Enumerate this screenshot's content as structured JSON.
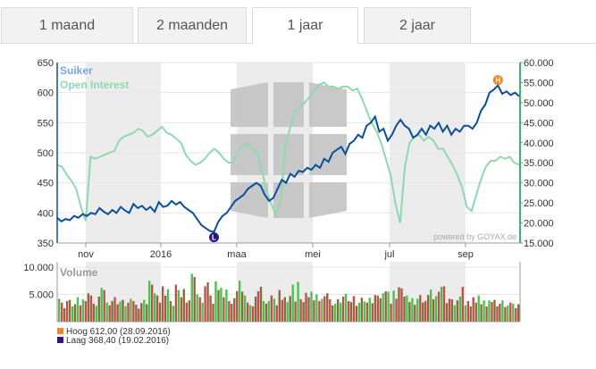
{
  "tabs": [
    {
      "label": "1 maand",
      "active": false
    },
    {
      "label": "2 maanden",
      "active": false
    },
    {
      "label": "1 jaar",
      "active": true
    },
    {
      "label": "2 jaar",
      "active": false
    }
  ],
  "legend": {
    "series1": "Suiker",
    "series2": "Open Interest",
    "volume": "Volume"
  },
  "watermark": "powered by GOYAX.de",
  "markers": {
    "high_letter": "H",
    "low_letter": "L"
  },
  "footer": {
    "high_text": "Hoog 612,00 (28.09.2016)",
    "low_text": "Laag 368,40 (19.02.2016)"
  },
  "colors": {
    "price": "#0a4f9a",
    "oi": "#8fd9ae",
    "oi_axis": "#3cb371",
    "high": "#e8882a",
    "low": "#2b1a7a",
    "vol_up": "#4fbf4f",
    "vol_down": "#c0504d",
    "vol_mix": "#8b6a3a",
    "band": "#ececec"
  },
  "chart_data": [
    {
      "type": "line",
      "x_ticks": [
        "nov",
        "2016",
        "maa",
        "mei",
        "jul",
        "sep"
      ],
      "y_left": {
        "ylim": [
          350,
          650
        ],
        "ticks": [
          "350",
          "400",
          "450",
          "500",
          "550",
          "600",
          "650"
        ]
      },
      "y_right": {
        "ylim": [
          15000,
          60000
        ],
        "ticks": [
          "15.000",
          "20.000",
          "25.000",
          "30.000",
          "35.000",
          "40.000",
          "45.000",
          "50.000",
          "55.000",
          "60.000"
        ]
      },
      "series": [
        {
          "name": "Suiker",
          "axis": "left",
          "values": [
            392,
            386,
            390,
            388,
            395,
            392,
            398,
            395,
            400,
            398,
            408,
            402,
            398,
            405,
            400,
            410,
            404,
            400,
            415,
            408,
            412,
            405,
            410,
            402,
            418,
            410,
            412,
            420,
            414,
            418,
            410,
            405,
            400,
            390,
            380,
            375,
            370,
            368.4,
            385,
            395,
            400,
            410,
            420,
            425,
            430,
            440,
            445,
            450,
            445,
            430,
            420,
            425,
            440,
            455,
            450,
            465,
            460,
            470,
            468,
            475,
            472,
            480,
            475,
            490,
            485,
            500,
            505,
            510,
            498,
            515,
            520,
            530,
            525,
            545,
            550,
            560,
            535,
            540,
            520,
            530,
            545,
            555,
            545,
            540,
            525,
            530,
            540,
            530,
            545,
            540,
            550,
            535,
            545,
            530,
            540,
            535,
            545,
            545,
            540,
            550,
            570,
            580,
            600,
            605,
            612,
            598,
            602,
            596,
            600,
            594
          ],
          "high": 612,
          "low": 368.4
        },
        {
          "name": "Open Interest",
          "axis": "right",
          "values": [
            34500,
            34000,
            32000,
            30500,
            28500,
            24000,
            20500,
            36500,
            36000,
            36500,
            37000,
            37500,
            38000,
            40500,
            41500,
            42000,
            42500,
            43500,
            43000,
            41500,
            42000,
            43000,
            44000,
            42500,
            42000,
            41000,
            40000,
            37000,
            35500,
            34500,
            35000,
            36000,
            37500,
            38500,
            37500,
            36000,
            35000,
            35200,
            38000,
            39500,
            40000,
            38500,
            37500,
            33000,
            28000,
            24500,
            22000,
            26000,
            40000,
            44000,
            48000,
            49000,
            50000,
            51500,
            53000,
            54500,
            55000,
            54000,
            54000,
            53500,
            54000,
            54000,
            53000,
            53500,
            51000,
            48000,
            45000,
            43000,
            40000,
            36000,
            32000,
            25000,
            20000,
            34000,
            40000,
            41500,
            42000,
            40500,
            41500,
            40500,
            38500,
            38500,
            36500,
            34500,
            32000,
            29000,
            24000,
            23000,
            27000,
            31000,
            34000,
            35500,
            35500,
            36500,
            36000,
            36500,
            35000,
            34500
          ],
          "ylim": [
            15000,
            60000
          ]
        }
      ]
    },
    {
      "type": "bar",
      "title": "Volume",
      "y_ticks": [
        "5.000",
        "10.000"
      ],
      "ylim": [
        0,
        11000
      ],
      "values": [
        4200,
        3500,
        2500,
        3800,
        4000,
        2800,
        3200,
        4500,
        3000,
        4100,
        3800,
        5200,
        4800,
        3300,
        2900,
        4600,
        6200,
        5800,
        3500,
        3000,
        3800,
        4500,
        3200,
        3700,
        4000,
        2800,
        3500,
        4200,
        3800,
        3100,
        2400,
        3400,
        4000,
        3200,
        7500,
        6800,
        5200,
        4800,
        3500,
        6500,
        4800,
        6000,
        3800,
        2900,
        6800,
        5800,
        4500,
        6000,
        3500,
        3900,
        8800,
        8200,
        5000,
        4500,
        3500,
        6500,
        7200,
        4800,
        3300,
        7400,
        5800,
        6200,
        4500,
        5900,
        3800,
        3300,
        4300,
        5600,
        7500,
        5500,
        4800,
        3500,
        3000,
        2800,
        4600,
        5600,
        6400,
        3800,
        3300,
        3800,
        4800,
        4200,
        3000,
        5800,
        4000,
        4500,
        3600,
        4700,
        6800,
        3700,
        7300,
        4100,
        3600,
        5300,
        4500,
        5500,
        3900,
        5000,
        3800,
        4200,
        4700,
        5200,
        4100,
        3000,
        3300,
        4100,
        3500,
        4600,
        5100,
        3800,
        3600,
        4700,
        2900,
        3500,
        4400,
        3700,
        3500,
        4400,
        3400,
        4900,
        4800,
        4300,
        5200,
        5600,
        5500,
        3300,
        5700,
        4200,
        6300,
        6100,
        4600,
        4800,
        3600,
        4300,
        3100,
        4200,
        4900,
        3500,
        3800,
        4900,
        5900,
        4100,
        4700,
        5500,
        6400,
        6500,
        3400,
        4200,
        4100,
        3000,
        3900,
        4600,
        6400,
        3000,
        3800,
        2800,
        4500,
        3500,
        4800,
        3200,
        3900,
        2800,
        3900,
        3600,
        4000,
        2800,
        3300,
        3900,
        2700,
        3000,
        3500,
        3300,
        2500,
        3200
      ]
    }
  ]
}
